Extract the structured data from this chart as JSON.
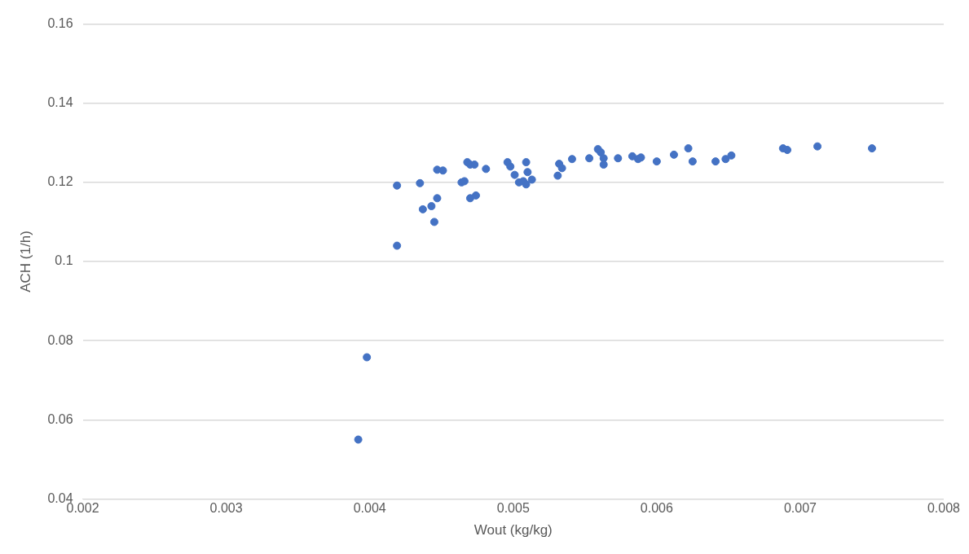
{
  "chart_data": {
    "type": "scatter",
    "xlabel": "Wout (kg/kg)",
    "ylabel": "ACH (1/h)",
    "xlim": [
      0.002,
      0.008
    ],
    "ylim": [
      0.04,
      0.16
    ],
    "xticks": [
      0.002,
      0.003,
      0.004,
      0.005,
      0.006,
      0.007,
      0.008
    ],
    "yticks": [
      0.04,
      0.06,
      0.08,
      0.1,
      0.12,
      0.14,
      0.16
    ],
    "grid": "y",
    "legend": false,
    "marker": "circle",
    "series": [
      {
        "color": "#4472c4",
        "x": [
          0.00392,
          0.00398,
          0.00419,
          0.00419,
          0.00435,
          0.00437,
          0.00443,
          0.00445,
          0.00447,
          0.00447,
          0.00451,
          0.00464,
          0.00466,
          0.00468,
          0.0047,
          0.00473,
          0.0047,
          0.00474,
          0.00481,
          0.00496,
          0.00498,
          0.00501,
          0.00504,
          0.00509,
          0.0051,
          0.00507,
          0.0051,
          0.00513,
          0.00509,
          0.00532,
          0.00534,
          0.00531,
          0.00541,
          0.00553,
          0.00559,
          0.00561,
          0.00563,
          0.00563,
          0.00573,
          0.00583,
          0.00587,
          0.00589,
          0.006,
          0.00612,
          0.00622,
          0.00625,
          0.00641,
          0.00648,
          0.00652,
          0.00688,
          0.00691,
          0.00712,
          0.0075
        ],
        "values": [
          0.055,
          0.0758,
          0.104,
          0.1192,
          0.1198,
          0.1132,
          0.114,
          0.11,
          0.116,
          0.1232,
          0.123,
          0.12,
          0.1203,
          0.1251,
          0.1245,
          0.1245,
          0.116,
          0.1167,
          0.1234,
          0.1251,
          0.124,
          0.1219,
          0.12,
          0.1251,
          0.1226,
          0.1203,
          null,
          0.1207,
          0.1195,
          0.1247,
          0.1236,
          0.1217,
          0.1259,
          0.1261,
          0.1284,
          0.1276,
          0.1261,
          0.1245,
          0.1261,
          0.1266,
          0.1259,
          0.1263,
          0.1253,
          0.127,
          0.1286,
          0.1253,
          0.1253,
          0.1259,
          0.1268,
          0.1286,
          0.1282,
          0.1291,
          0.1286
        ]
      }
    ]
  }
}
